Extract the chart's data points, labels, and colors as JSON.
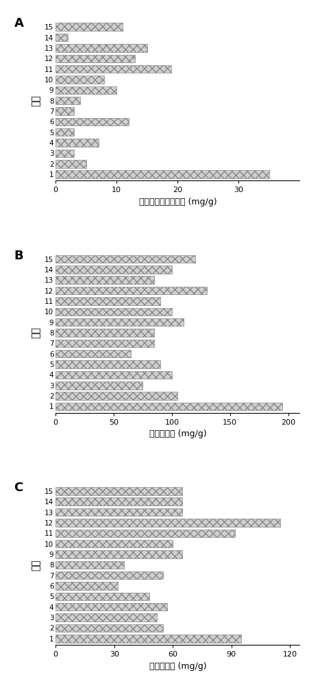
{
  "chart_A": {
    "label": "A",
    "values": [
      35,
      5,
      3,
      7,
      3,
      12,
      3,
      4,
      10,
      8,
      19,
      13,
      15,
      2,
      11
    ],
    "categories": [
      1,
      2,
      3,
      4,
      5,
      6,
      7,
      8,
      9,
      10,
      11,
      12,
      13,
      14,
      15
    ],
    "xlabel": "黄酮及其他成分含量 (mg/g)",
    "ylabel": "产地",
    "xlim": [
      0,
      40
    ],
    "xticks": [
      0,
      10,
      20,
      30
    ]
  },
  "chart_B": {
    "label": "B",
    "values": [
      195,
      105,
      75,
      100,
      90,
      65,
      85,
      85,
      110,
      100,
      90,
      130,
      85,
      100,
      120
    ],
    "categories": [
      1,
      2,
      3,
      4,
      5,
      6,
      7,
      8,
      9,
      10,
      11,
      12,
      13,
      14,
      15
    ],
    "xlabel": "总酚酸含量 (mg/g)",
    "ylabel": "产地",
    "xlim": [
      0,
      210
    ],
    "xticks": [
      0,
      50,
      100,
      150,
      200
    ]
  },
  "chart_C": {
    "label": "C",
    "values": [
      95,
      55,
      52,
      57,
      48,
      32,
      55,
      35,
      65,
      60,
      92,
      115,
      65,
      65,
      65
    ],
    "categories": [
      1,
      2,
      3,
      4,
      5,
      6,
      7,
      8,
      9,
      10,
      11,
      12,
      13,
      14,
      15
    ],
    "xlabel": "总皮苷含量 (mg/g)",
    "ylabel": "产地",
    "xlim": [
      0,
      125
    ],
    "xticks": [
      0,
      30,
      60,
      90,
      120
    ]
  },
  "bar_facecolor": "#d0d0d0",
  "bar_edgecolor": "#888888",
  "hatch": "xxx",
  "hatch_color": "#aaaaaa"
}
